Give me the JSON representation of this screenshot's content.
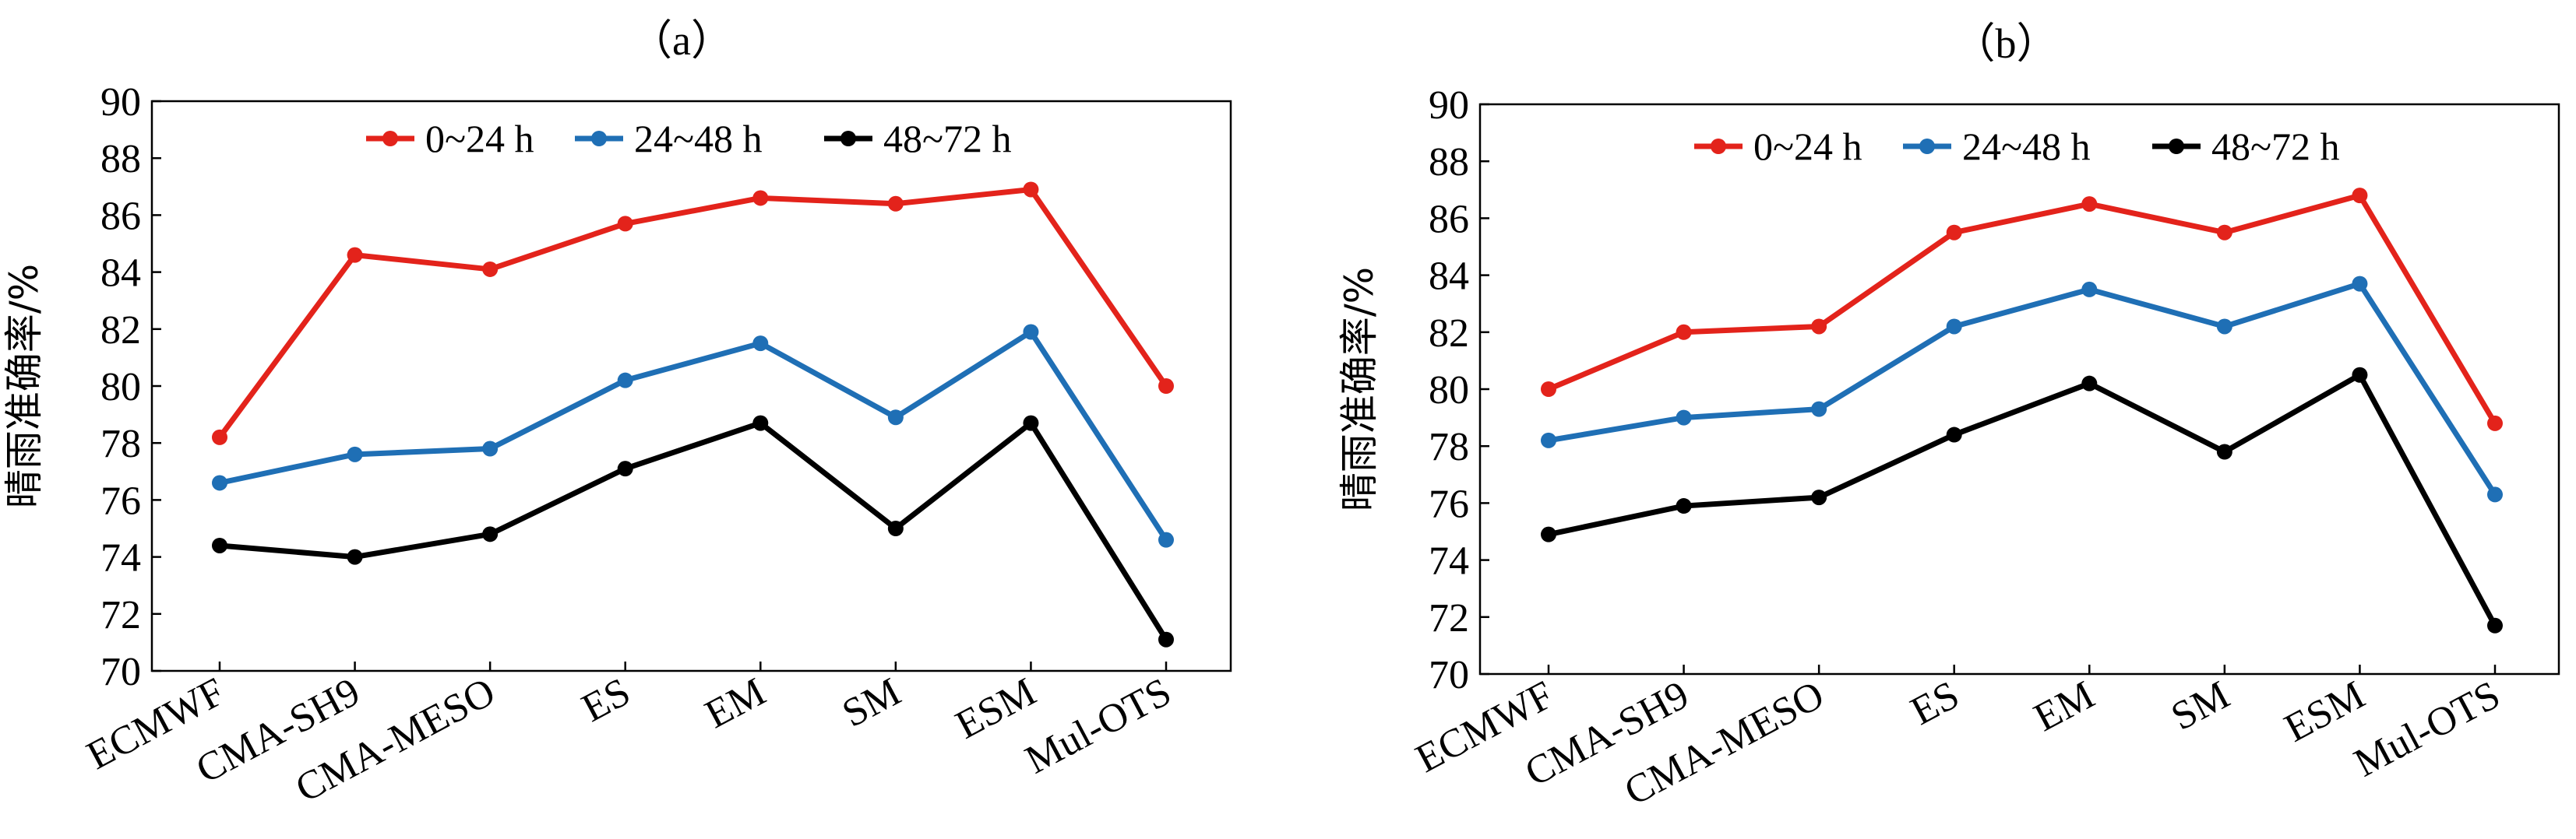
{
  "chart_data": [
    {
      "type": "line",
      "title": "（a）",
      "xlabel": "",
      "ylabel": "晴雨准确率/%",
      "ylim": [
        70,
        90
      ],
      "yticks": [
        "70",
        "72",
        "74",
        "76",
        "78",
        "80",
        "82",
        "84",
        "86",
        "88",
        "90"
      ],
      "categories": [
        "ECMWF",
        "CMA-SH9",
        "CMA-MESO",
        "ES",
        "EM",
        "SM",
        "ESM",
        "Mul-OTS"
      ],
      "legend_position": "top-center",
      "grid": false,
      "series": [
        {
          "name": "0~24 h",
          "color": "#e3231b",
          "values": [
            78.2,
            84.6,
            84.1,
            85.7,
            86.6,
            86.4,
            86.9,
            80.0
          ]
        },
        {
          "name": "24~48 h",
          "color": "#1f6fb5",
          "values": [
            76.6,
            77.6,
            77.8,
            80.2,
            81.5,
            78.9,
            81.9,
            74.6
          ]
        },
        {
          "name": "48~72 h",
          "color": "#000000",
          "values": [
            74.4,
            74.0,
            74.8,
            77.1,
            78.7,
            75.0,
            78.7,
            71.1
          ]
        }
      ]
    },
    {
      "type": "line",
      "title": "（b）",
      "xlabel": "",
      "ylabel": "晴雨准确率/%",
      "ylim": [
        70,
        90
      ],
      "yticks": [
        "70",
        "72",
        "74",
        "76",
        "78",
        "80",
        "82",
        "84",
        "86",
        "88",
        "90"
      ],
      "categories": [
        "ECMWF",
        "CMA-SH9",
        "CMA-MESO",
        "ES",
        "EM",
        "SM",
        "ESM",
        "Mul-OTS"
      ],
      "legend_position": "top-center",
      "grid": false,
      "series": [
        {
          "name": "0~24 h",
          "color": "#e3231b",
          "values": [
            80.0,
            82.0,
            82.2,
            85.5,
            86.5,
            85.5,
            86.8,
            78.8
          ]
        },
        {
          "name": "24~48 h",
          "color": "#1f6fb5",
          "values": [
            78.2,
            79.0,
            79.3,
            82.2,
            83.5,
            82.2,
            83.7,
            76.3
          ]
        },
        {
          "name": "48~72 h",
          "color": "#000000",
          "values": [
            74.9,
            75.9,
            76.2,
            78.4,
            80.2,
            77.8,
            80.5,
            71.7
          ]
        }
      ]
    }
  ]
}
